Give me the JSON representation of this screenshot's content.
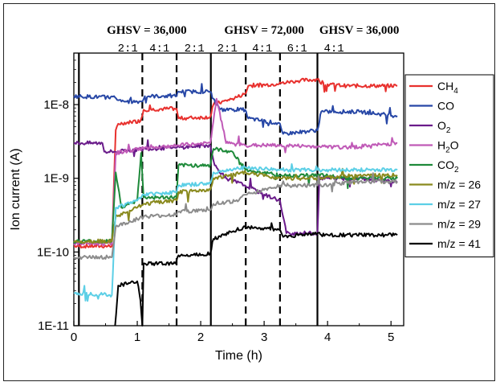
{
  "chart_data": {
    "type": "line",
    "xlabel": "Time (h)",
    "ylabel": "Ion current (A)",
    "xlim": [
      0,
      5.2
    ],
    "ylim": [
      1e-11,
      5e-08
    ],
    "yscale": "log",
    "x_ticks": [
      0,
      1,
      2,
      3,
      4,
      5
    ],
    "y_ticks": [
      {
        "value": 1e-11,
        "label": "1E-11"
      },
      {
        "value": 1e-10,
        "label": "1E-10"
      },
      {
        "value": 1e-09,
        "label": "1E-9"
      },
      {
        "value": 1e-08,
        "label": "1E-8"
      }
    ],
    "legend_position": "right",
    "ghsv_labels": [
      {
        "text": "GHSV = 36,000",
        "x": 1.15
      },
      {
        "text": "GHSV = 72,000",
        "x": 3.0
      },
      {
        "text": "GHSV = 36,000",
        "x": 4.5
      }
    ],
    "ratio_labels": [
      {
        "text": "2:1",
        "x": 0.85
      },
      {
        "text": "4:1",
        "x": 1.35
      },
      {
        "text": "2:1",
        "x": 1.9
      },
      {
        "text": "2:1",
        "x": 2.42
      },
      {
        "text": "4:1",
        "x": 2.97
      },
      {
        "text": "6:1",
        "x": 3.52
      },
      {
        "text": "4:1",
        "x": 4.1
      }
    ],
    "vlines": [
      {
        "x": 0.08,
        "style": "solid"
      },
      {
        "x": 1.08,
        "style": "dashed"
      },
      {
        "x": 1.62,
        "style": "dashed"
      },
      {
        "x": 2.16,
        "style": "solid"
      },
      {
        "x": 2.71,
        "style": "dashed"
      },
      {
        "x": 3.25,
        "style": "dashed"
      },
      {
        "x": 3.84,
        "style": "solid"
      }
    ],
    "series": [
      {
        "name": "CH4",
        "label_main": "CH",
        "label_sub": "4",
        "color": "#e8312e",
        "points": [
          [
            0,
            1.2e-10
          ],
          [
            0.6,
            1.2e-10
          ],
          [
            0.66,
            4.5e-09
          ],
          [
            0.7,
            5.5e-09
          ],
          [
            0.9,
            5.8e-09
          ],
          [
            1.05,
            6e-09
          ],
          [
            1.1,
            8.5e-09
          ],
          [
            1.5,
            8.8e-09
          ],
          [
            1.62,
            8.8e-09
          ],
          [
            1.65,
            6.5e-09
          ],
          [
            2.15,
            6.8e-09
          ],
          [
            2.2,
            1e-08
          ],
          [
            2.5,
            1.2e-08
          ],
          [
            2.7,
            1.4e-08
          ],
          [
            2.75,
            1.8e-08
          ],
          [
            3.2,
            1.9e-08
          ],
          [
            3.5,
            2.1e-08
          ],
          [
            3.84,
            2.2e-08
          ],
          [
            3.9,
            1.9e-08
          ],
          [
            4.3,
            1.8e-08
          ],
          [
            5.1,
            1.8e-08
          ]
        ]
      },
      {
        "name": "CO",
        "label_main": "CO",
        "label_sub": "",
        "color": "#2747a6",
        "points": [
          [
            0,
            1.3e-08
          ],
          [
            0.65,
            1.25e-08
          ],
          [
            0.75,
            1.1e-08
          ],
          [
            1.08,
            1.1e-08
          ],
          [
            1.12,
            1.3e-08
          ],
          [
            1.62,
            1.3e-08
          ],
          [
            1.65,
            1.5e-08
          ],
          [
            2.15,
            1.5e-08
          ],
          [
            2.2,
            1.2e-08
          ],
          [
            2.3,
            8.5e-09
          ],
          [
            2.7,
            8.5e-09
          ],
          [
            2.75,
            6.5e-09
          ],
          [
            3.25,
            5.5e-09
          ],
          [
            3.3,
            4e-09
          ],
          [
            3.84,
            4.5e-09
          ],
          [
            3.9,
            8e-09
          ],
          [
            4.5,
            8e-09
          ],
          [
            5.1,
            7e-09
          ]
        ]
      },
      {
        "name": "O2",
        "label_main": "O",
        "label_sub": "2",
        "color": "#6a1b8a",
        "points": [
          [
            0,
            3e-09
          ],
          [
            0.45,
            3e-09
          ],
          [
            0.48,
            2.3e-09
          ],
          [
            0.7,
            2.3e-09
          ],
          [
            1.1,
            2.5e-09
          ],
          [
            1.6,
            2.6e-09
          ],
          [
            2.15,
            2.8e-09
          ],
          [
            2.22,
            1.5e-09
          ],
          [
            2.4,
            1e-09
          ],
          [
            2.7,
            8e-10
          ],
          [
            3.0,
            6e-10
          ],
          [
            3.25,
            5e-10
          ],
          [
            3.35,
            1.8e-10
          ],
          [
            3.84,
            1.8e-10
          ],
          [
            3.87,
            1e-09
          ],
          [
            4.5,
            1e-09
          ],
          [
            5.1,
            9e-10
          ]
        ]
      },
      {
        "name": "H2O",
        "label_main": "H",
        "label_sub": "2",
        "label_tail": "O",
        "color": "#c05ab7",
        "points": [
          [
            0,
            1.3e-10
          ],
          [
            0.6,
            1.3e-10
          ],
          [
            0.66,
            2.2e-09
          ],
          [
            1.0,
            2.5e-09
          ],
          [
            1.62,
            2.8e-09
          ],
          [
            2.15,
            3e-09
          ],
          [
            2.25,
            1.2e-08
          ],
          [
            2.4,
            3e-09
          ],
          [
            2.7,
            2.8e-09
          ],
          [
            3.25,
            2.8e-09
          ],
          [
            3.84,
            2.7e-09
          ],
          [
            4.3,
            2.6e-09
          ],
          [
            5.1,
            3e-09
          ]
        ]
      },
      {
        "name": "CO2",
        "label_main": "CO",
        "label_sub": "2",
        "color": "#1e8a3a",
        "points": [
          [
            0,
            1.4e-10
          ],
          [
            0.6,
            1.4e-10
          ],
          [
            0.66,
            1.2e-09
          ],
          [
            0.75,
            4e-10
          ],
          [
            1.0,
            5e-10
          ],
          [
            1.06,
            2.2e-09
          ],
          [
            1.1,
            5.5e-10
          ],
          [
            1.62,
            5.5e-10
          ],
          [
            1.65,
            1.5e-09
          ],
          [
            2.15,
            1.5e-09
          ],
          [
            2.2,
            2.5e-09
          ],
          [
            2.5,
            2.3e-09
          ],
          [
            2.71,
            1.3e-09
          ],
          [
            3.25,
            1.1e-09
          ],
          [
            3.84,
            1.1e-09
          ],
          [
            4.5,
            1e-09
          ],
          [
            5.1,
            1e-09
          ]
        ]
      },
      {
        "name": "m/z = 26",
        "label_main": "m/z = 26",
        "label_sub": "",
        "color": "#8a8a1e",
        "points": [
          [
            0,
            1.4e-10
          ],
          [
            0.6,
            1.4e-10
          ],
          [
            0.66,
            3e-10
          ],
          [
            1.0,
            4e-10
          ],
          [
            1.1,
            4.5e-10
          ],
          [
            1.62,
            5e-10
          ],
          [
            1.65,
            6.5e-10
          ],
          [
            2.15,
            7e-10
          ],
          [
            2.2,
            1e-09
          ],
          [
            2.71,
            1.2e-09
          ],
          [
            3.25,
            1e-09
          ],
          [
            3.84,
            1e-09
          ],
          [
            4.5,
            1.1e-09
          ],
          [
            5.1,
            1.1e-09
          ]
        ]
      },
      {
        "name": "m/z = 27",
        "label_main": "m/z = 27",
        "label_sub": "",
        "color": "#5ccfe6",
        "points": [
          [
            0,
            2.8e-11
          ],
          [
            0.6,
            2.6e-11
          ],
          [
            0.66,
            4e-10
          ],
          [
            1.0,
            5e-10
          ],
          [
            1.1,
            6e-10
          ],
          [
            1.62,
            6.5e-10
          ],
          [
            1.65,
            8e-10
          ],
          [
            2.15,
            8.5e-10
          ],
          [
            2.2,
            1.2e-09
          ],
          [
            2.71,
            1.4e-09
          ],
          [
            3.25,
            1.3e-09
          ],
          [
            3.84,
            1.3e-09
          ],
          [
            4.5,
            1.3e-09
          ],
          [
            5.1,
            1.3e-09
          ]
        ]
      },
      {
        "name": "m/z = 29",
        "label_main": "m/z = 29",
        "label_sub": "",
        "color": "#8c8c8c",
        "points": [
          [
            0,
            8.5e-11
          ],
          [
            0.6,
            8.5e-11
          ],
          [
            0.66,
            2.2e-10
          ],
          [
            1.0,
            2.8e-10
          ],
          [
            1.1,
            3e-10
          ],
          [
            1.62,
            3.2e-10
          ],
          [
            1.65,
            3.5e-10
          ],
          [
            2.15,
            3.7e-10
          ],
          [
            2.2,
            4.5e-10
          ],
          [
            2.6,
            5e-10
          ],
          [
            2.71,
            6e-10
          ],
          [
            3.25,
            8e-10
          ],
          [
            3.84,
            8e-10
          ],
          [
            4.5,
            9e-10
          ],
          [
            5.1,
            9e-10
          ]
        ]
      },
      {
        "name": "m/z = 41",
        "label_main": "m/z = 41",
        "label_sub": "",
        "color": "#000000",
        "points": [
          [
            0.65,
            1e-11
          ],
          [
            0.7,
            3.5e-11
          ],
          [
            1.0,
            4e-11
          ],
          [
            1.05,
            2.2e-11
          ],
          [
            1.08,
            1e-11
          ],
          [
            1.1,
            7e-11
          ],
          [
            1.6,
            7e-11
          ],
          [
            1.65,
            9e-11
          ],
          [
            2.15,
            9.5e-11
          ],
          [
            2.2,
            1.5e-10
          ],
          [
            2.7,
            2.2e-10
          ],
          [
            3.25,
            2e-10
          ],
          [
            3.3,
            1.6e-10
          ],
          [
            3.84,
            1.8e-10
          ],
          [
            3.9,
            1.7e-10
          ],
          [
            5.1,
            1.7e-10
          ]
        ]
      }
    ]
  }
}
